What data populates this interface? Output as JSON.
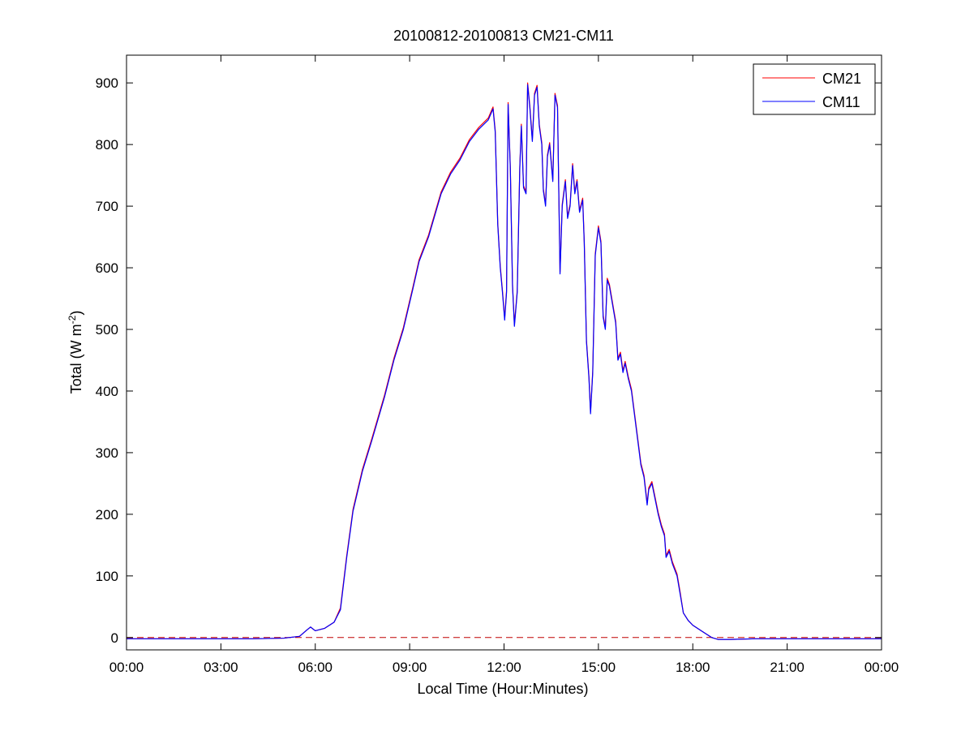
{
  "chart_data": {
    "type": "line",
    "title": "20100812-20100813 CM21-CM11",
    "xlabel": "Local Time (Hour:Minutes)",
    "ylabel": {
      "base": "Total (W m",
      "sup": "-2",
      "close": ")"
    },
    "xlim": [
      0,
      24
    ],
    "ylim": [
      -20,
      945
    ],
    "x_ticks": [
      0,
      3,
      6,
      9,
      12,
      15,
      18,
      21,
      24
    ],
    "x_tick_labels": [
      "00:00",
      "03:00",
      "06:00",
      "09:00",
      "12:00",
      "15:00",
      "18:00",
      "21:00",
      "00:00"
    ],
    "y_ticks": [
      0,
      100,
      200,
      300,
      400,
      500,
      600,
      700,
      800,
      900
    ],
    "y_tick_labels": [
      "0",
      "100",
      "200",
      "300",
      "400",
      "500",
      "600",
      "700",
      "800",
      "900"
    ],
    "grid": false,
    "legend_position": "top-right",
    "reference_line": {
      "y": 0,
      "style": "dashed",
      "color": "#c00000"
    },
    "x_unit": "hours (local time)",
    "series": [
      {
        "name": "CM21",
        "color": "#ff0000",
        "offset": 3,
        "points": [
          [
            0,
            -2
          ],
          [
            1,
            -2
          ],
          [
            2,
            -2
          ],
          [
            3,
            -2
          ],
          [
            4,
            -2
          ],
          [
            5,
            -1
          ],
          [
            5.5,
            2
          ],
          [
            5.75,
            13
          ],
          [
            5.85,
            17
          ],
          [
            6,
            11
          ],
          [
            6.3,
            15
          ],
          [
            6.6,
            25
          ],
          [
            6.8,
            45
          ],
          [
            7,
            130
          ],
          [
            7.2,
            205
          ],
          [
            7.5,
            270
          ],
          [
            7.8,
            320
          ],
          [
            8.2,
            390
          ],
          [
            8.5,
            450
          ],
          [
            8.8,
            500
          ],
          [
            9.1,
            565
          ],
          [
            9.3,
            610
          ],
          [
            9.6,
            650
          ],
          [
            10,
            720
          ],
          [
            10.3,
            752
          ],
          [
            10.6,
            775
          ],
          [
            10.9,
            805
          ],
          [
            11.2,
            825
          ],
          [
            11.5,
            840
          ],
          [
            11.65,
            858
          ],
          [
            11.72,
            820
          ],
          [
            11.8,
            670
          ],
          [
            11.88,
            600
          ],
          [
            11.95,
            560
          ],
          [
            12.02,
            515
          ],
          [
            12.08,
            560
          ],
          [
            12.13,
            865
          ],
          [
            12.2,
            760
          ],
          [
            12.27,
            570
          ],
          [
            12.33,
            505
          ],
          [
            12.42,
            560
          ],
          [
            12.5,
            760
          ],
          [
            12.55,
            830
          ],
          [
            12.62,
            730
          ],
          [
            12.7,
            720
          ],
          [
            12.75,
            897
          ],
          [
            12.82,
            860
          ],
          [
            12.9,
            805
          ],
          [
            12.97,
            880
          ],
          [
            13.05,
            893
          ],
          [
            13.12,
            830
          ],
          [
            13.2,
            800
          ],
          [
            13.25,
            725
          ],
          [
            13.32,
            700
          ],
          [
            13.38,
            780
          ],
          [
            13.45,
            800
          ],
          [
            13.55,
            740
          ],
          [
            13.62,
            880
          ],
          [
            13.7,
            860
          ],
          [
            13.78,
            590
          ],
          [
            13.85,
            700
          ],
          [
            13.95,
            740
          ],
          [
            14.02,
            680
          ],
          [
            14.1,
            700
          ],
          [
            14.18,
            766
          ],
          [
            14.25,
            720
          ],
          [
            14.32,
            740
          ],
          [
            14.4,
            690
          ],
          [
            14.5,
            710
          ],
          [
            14.55,
            640
          ],
          [
            14.62,
            480
          ],
          [
            14.7,
            420
          ],
          [
            14.75,
            363
          ],
          [
            14.82,
            430
          ],
          [
            14.9,
            620
          ],
          [
            15,
            665
          ],
          [
            15.08,
            640
          ],
          [
            15.15,
            520
          ],
          [
            15.22,
            500
          ],
          [
            15.28,
            580
          ],
          [
            15.35,
            570
          ],
          [
            15.45,
            540
          ],
          [
            15.55,
            510
          ],
          [
            15.62,
            450
          ],
          [
            15.7,
            460
          ],
          [
            15.78,
            430
          ],
          [
            15.85,
            445
          ],
          [
            15.95,
            420
          ],
          [
            16.05,
            400
          ],
          [
            16.15,
            360
          ],
          [
            16.25,
            320
          ],
          [
            16.35,
            280
          ],
          [
            16.45,
            260
          ],
          [
            16.55,
            215
          ],
          [
            16.6,
            240
          ],
          [
            16.7,
            250
          ],
          [
            16.8,
            225
          ],
          [
            16.9,
            200
          ],
          [
            17,
            180
          ],
          [
            17.1,
            165
          ],
          [
            17.15,
            130
          ],
          [
            17.25,
            140
          ],
          [
            17.35,
            120
          ],
          [
            17.5,
            100
          ],
          [
            17.6,
            70
          ],
          [
            17.7,
            40
          ],
          [
            17.85,
            28
          ],
          [
            18,
            20
          ],
          [
            18.3,
            10
          ],
          [
            18.6,
            0
          ],
          [
            18.8,
            -3
          ],
          [
            19.2,
            -3
          ],
          [
            20,
            -2
          ],
          [
            21,
            -2
          ],
          [
            22,
            -2
          ],
          [
            23,
            -2
          ],
          [
            24,
            -2
          ]
        ]
      },
      {
        "name": "CM11",
        "color": "#0000ff",
        "offset": 0,
        "points": [
          [
            0,
            -2
          ],
          [
            1,
            -2
          ],
          [
            2,
            -2
          ],
          [
            3,
            -2
          ],
          [
            4,
            -2
          ],
          [
            5,
            -1
          ],
          [
            5.5,
            2
          ],
          [
            5.75,
            13
          ],
          [
            5.85,
            17
          ],
          [
            6,
            11
          ],
          [
            6.3,
            15
          ],
          [
            6.6,
            25
          ],
          [
            6.8,
            45
          ],
          [
            7,
            130
          ],
          [
            7.2,
            205
          ],
          [
            7.5,
            270
          ],
          [
            7.8,
            320
          ],
          [
            8.2,
            390
          ],
          [
            8.5,
            450
          ],
          [
            8.8,
            500
          ],
          [
            9.1,
            565
          ],
          [
            9.3,
            610
          ],
          [
            9.6,
            650
          ],
          [
            10,
            720
          ],
          [
            10.3,
            752
          ],
          [
            10.6,
            775
          ],
          [
            10.9,
            805
          ],
          [
            11.2,
            825
          ],
          [
            11.5,
            840
          ],
          [
            11.65,
            858
          ],
          [
            11.72,
            820
          ],
          [
            11.8,
            670
          ],
          [
            11.88,
            600
          ],
          [
            11.95,
            560
          ],
          [
            12.02,
            515
          ],
          [
            12.08,
            560
          ],
          [
            12.13,
            865
          ],
          [
            12.2,
            760
          ],
          [
            12.27,
            570
          ],
          [
            12.33,
            505
          ],
          [
            12.42,
            560
          ],
          [
            12.5,
            760
          ],
          [
            12.55,
            830
          ],
          [
            12.62,
            730
          ],
          [
            12.7,
            720
          ],
          [
            12.75,
            897
          ],
          [
            12.82,
            860
          ],
          [
            12.9,
            805
          ],
          [
            12.97,
            880
          ],
          [
            13.05,
            893
          ],
          [
            13.12,
            830
          ],
          [
            13.2,
            800
          ],
          [
            13.25,
            725
          ],
          [
            13.32,
            700
          ],
          [
            13.38,
            780
          ],
          [
            13.45,
            800
          ],
          [
            13.55,
            740
          ],
          [
            13.62,
            880
          ],
          [
            13.7,
            860
          ],
          [
            13.78,
            590
          ],
          [
            13.85,
            700
          ],
          [
            13.95,
            740
          ],
          [
            14.02,
            680
          ],
          [
            14.1,
            700
          ],
          [
            14.18,
            766
          ],
          [
            14.25,
            720
          ],
          [
            14.32,
            740
          ],
          [
            14.4,
            690
          ],
          [
            14.5,
            710
          ],
          [
            14.55,
            640
          ],
          [
            14.62,
            480
          ],
          [
            14.7,
            420
          ],
          [
            14.75,
            363
          ],
          [
            14.82,
            430
          ],
          [
            14.9,
            620
          ],
          [
            15,
            665
          ],
          [
            15.08,
            640
          ],
          [
            15.15,
            520
          ],
          [
            15.22,
            500
          ],
          [
            15.28,
            580
          ],
          [
            15.35,
            570
          ],
          [
            15.45,
            540
          ],
          [
            15.55,
            510
          ],
          [
            15.62,
            450
          ],
          [
            15.7,
            460
          ],
          [
            15.78,
            430
          ],
          [
            15.85,
            445
          ],
          [
            15.95,
            420
          ],
          [
            16.05,
            400
          ],
          [
            16.15,
            360
          ],
          [
            16.25,
            320
          ],
          [
            16.35,
            280
          ],
          [
            16.45,
            260
          ],
          [
            16.55,
            215
          ],
          [
            16.6,
            240
          ],
          [
            16.7,
            250
          ],
          [
            16.8,
            225
          ],
          [
            16.9,
            200
          ],
          [
            17,
            180
          ],
          [
            17.1,
            165
          ],
          [
            17.15,
            130
          ],
          [
            17.25,
            140
          ],
          [
            17.35,
            120
          ],
          [
            17.5,
            100
          ],
          [
            17.6,
            70
          ],
          [
            17.7,
            40
          ],
          [
            17.85,
            28
          ],
          [
            18,
            20
          ],
          [
            18.3,
            10
          ],
          [
            18.6,
            0
          ],
          [
            18.8,
            -3
          ],
          [
            19.2,
            -3
          ],
          [
            20,
            -2
          ],
          [
            21,
            -2
          ],
          [
            22,
            -2
          ],
          [
            23,
            -2
          ],
          [
            24,
            -2
          ]
        ]
      }
    ]
  }
}
